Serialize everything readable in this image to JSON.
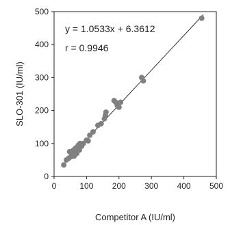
{
  "chart_data": {
    "type": "scatter",
    "xlabel": "Competitor A (IU/ml)",
    "ylabel": "SLO-301 (IU/ml)",
    "xlim": [
      0,
      500
    ],
    "ylim": [
      0,
      500
    ],
    "xticks": [
      "0",
      "100",
      "200",
      "300",
      "400",
      "500"
    ],
    "yticks": [
      "0",
      "100",
      "200",
      "300",
      "400",
      "500"
    ],
    "grid": false,
    "annotations": {
      "equation": "y = 1.0533x + 6.3612",
      "r": "r = 0.9946"
    },
    "regression": {
      "slope": 1.0533,
      "intercept": 6.3612
    },
    "marker_color": "#808080",
    "line_color": "#333333",
    "points": [
      [
        30,
        35
      ],
      [
        38,
        50
      ],
      [
        45,
        55
      ],
      [
        48,
        75
      ],
      [
        52,
        60
      ],
      [
        55,
        68
      ],
      [
        58,
        72
      ],
      [
        60,
        80
      ],
      [
        62,
        62
      ],
      [
        65,
        85
      ],
      [
        67,
        75
      ],
      [
        70,
        70
      ],
      [
        72,
        90
      ],
      [
        75,
        95
      ],
      [
        78,
        80
      ],
      [
        80,
        100
      ],
      [
        85,
        92
      ],
      [
        90,
        100
      ],
      [
        100,
        110
      ],
      [
        105,
        108
      ],
      [
        110,
        125
      ],
      [
        120,
        135
      ],
      [
        135,
        155
      ],
      [
        145,
        160
      ],
      [
        155,
        175
      ],
      [
        158,
        185
      ],
      [
        160,
        195
      ],
      [
        185,
        230
      ],
      [
        190,
        225
      ],
      [
        195,
        215
      ],
      [
        200,
        210
      ],
      [
        205,
        225
      ],
      [
        270,
        300
      ],
      [
        275,
        290
      ],
      [
        455,
        480
      ]
    ]
  }
}
